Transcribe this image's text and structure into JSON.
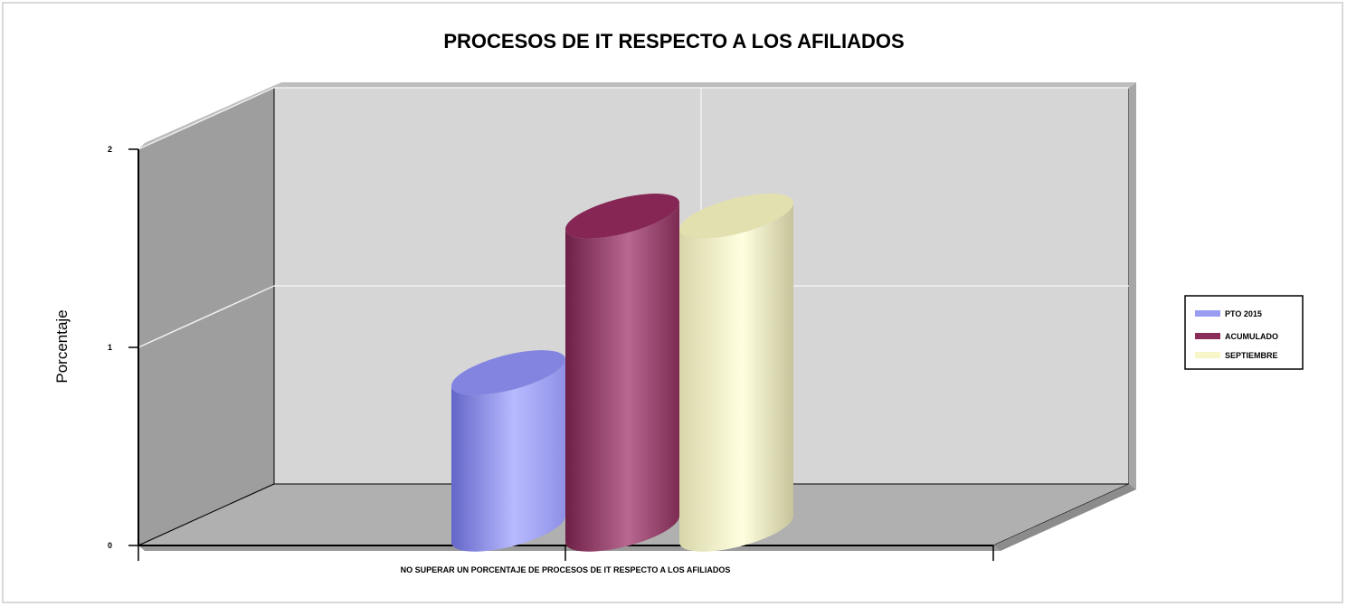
{
  "chart_data": {
    "type": "bar",
    "title": "PROCESOS DE IT RESPECTO A LOS AFILIADOS",
    "xlabel": "",
    "ylabel": "Porcentaje",
    "categories": [
      "NO SUPERAR UN PORCENTAJE DE PROCESOS DE IT RESPECTO A LOS AFILIADOS"
    ],
    "ylim": [
      0,
      2
    ],
    "yticks": [
      "0",
      "1",
      "2"
    ],
    "series": [
      {
        "name": "PTO 2015",
        "values": [
          0.85
        ],
        "color": "#9a9cf2"
      },
      {
        "name": "ACUMULADO",
        "values": [
          1.7
        ],
        "color": "#8b2d5a"
      },
      {
        "name": "SEPTIEMBRE",
        "values": [
          1.7
        ],
        "color": "#f8f6c8"
      }
    ],
    "grid": true,
    "legend_position": "right",
    "style": "3d-cylinder"
  }
}
